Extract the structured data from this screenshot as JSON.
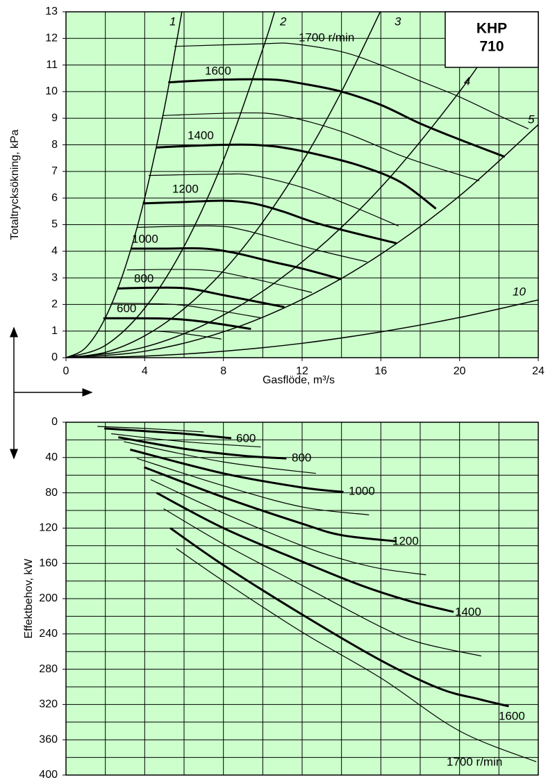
{
  "chart_data": [
    {
      "type": "line",
      "xlabel": "Gasflöde, m³/s",
      "ylabel": "Totaltrycksökning, kPa",
      "badge": [
        "KHP",
        "710"
      ],
      "xlim": [
        0,
        24
      ],
      "ylim": [
        0,
        13
      ],
      "xticks": [
        0,
        4,
        8,
        12,
        16,
        20,
        24
      ],
      "xgrid": [
        0,
        2,
        4,
        6,
        8,
        10,
        12,
        14,
        16,
        18,
        20,
        22,
        24
      ],
      "yticks": [
        0,
        1,
        2,
        3,
        4,
        5,
        6,
        7,
        8,
        9,
        10,
        11,
        12,
        13
      ],
      "grid": true,
      "background": "#ccffcc",
      "series": [
        {
          "color": "#000000",
          "width": 1.2,
          "x": [
            1.6,
            4.4,
            6,
            7.9
          ],
          "values": [
            1.0,
            1.0,
            0.9,
            0.7
          ]
        },
        {
          "name": "600",
          "color": "#000000",
          "width": 3,
          "x": [
            1.9,
            5,
            7,
            9.4
          ],
          "values": [
            1.48,
            1.47,
            1.35,
            1.08
          ]
        },
        {
          "color": "#000000",
          "width": 1.2,
          "x": [
            2.3,
            5.5,
            7.5,
            9.9
          ],
          "values": [
            2.05,
            2.0,
            1.8,
            1.5
          ]
        },
        {
          "name": "800",
          "color": "#000000",
          "width": 3,
          "x": [
            2.6,
            4.5,
            6.2,
            8,
            11.1
          ],
          "values": [
            2.6,
            2.63,
            2.6,
            2.35,
            1.9
          ]
        },
        {
          "color": "#000000",
          "width": 1.2,
          "x": [
            3.1,
            6.9,
            9,
            12.5
          ],
          "values": [
            3.3,
            3.3,
            3.05,
            2.45
          ]
        },
        {
          "name": "1000",
          "color": "#000000",
          "width": 3,
          "x": [
            3.3,
            5,
            7,
            8.5,
            10.5,
            12,
            14
          ],
          "values": [
            4.1,
            4.1,
            4.1,
            3.95,
            3.6,
            3.35,
            2.95
          ]
        },
        {
          "color": "#000000",
          "width": 1.2,
          "x": [
            3.6,
            7.5,
            9,
            11,
            13,
            15.3
          ],
          "values": [
            4.9,
            4.95,
            4.8,
            4.4,
            4.0,
            3.6
          ]
        },
        {
          "name": "1200",
          "color": "#000000",
          "width": 3,
          "x": [
            3.9,
            6,
            8,
            9.5,
            11,
            13,
            16.8
          ],
          "values": [
            5.8,
            5.85,
            5.9,
            5.8,
            5.5,
            5.0,
            4.3
          ]
        },
        {
          "color": "#000000",
          "width": 1.2,
          "x": [
            4.2,
            8,
            9.5,
            12,
            14.5,
            16.9
          ],
          "values": [
            6.85,
            6.9,
            6.85,
            6.4,
            5.7,
            4.95
          ]
        },
        {
          "name": "1400",
          "color": "#000000",
          "width": 3,
          "x": [
            4.6,
            6,
            8,
            9.5,
            11,
            13,
            15,
            17,
            18.8
          ],
          "values": [
            7.9,
            7.95,
            8.0,
            8.0,
            7.9,
            7.6,
            7.2,
            6.6,
            5.6
          ]
        },
        {
          "color": "#000000",
          "width": 1.2,
          "x": [
            4.9,
            9,
            11,
            14,
            17,
            19,
            21
          ],
          "values": [
            9.1,
            9.2,
            9.1,
            8.5,
            7.6,
            7.1,
            6.65
          ]
        },
        {
          "name": "1600",
          "color": "#000000",
          "width": 3,
          "x": [
            5.2,
            8,
            10.5,
            12,
            14,
            16,
            18,
            20,
            22.3
          ],
          "values": [
            10.35,
            10.45,
            10.45,
            10.3,
            10.0,
            9.5,
            8.8,
            8.2,
            7.55
          ]
        },
        {
          "name": "1700 r/min",
          "color": "#000000",
          "width": 1.2,
          "x": [
            5.5,
            10,
            11.5,
            14,
            16,
            18,
            20,
            22,
            23.5
          ],
          "values": [
            11.7,
            11.8,
            11.8,
            11.5,
            11.0,
            10.4,
            9.8,
            9.1,
            8.6
          ]
        }
      ],
      "system_curves": [
        {
          "name": "1",
          "color": "#000000",
          "x": [
            0,
            1,
            2,
            3,
            4,
            5,
            5.89
          ],
          "values": [
            0,
            0.375,
            1.5,
            3.375,
            6.0,
            9.375,
            13.0
          ]
        },
        {
          "name": "2",
          "color": "#000000",
          "x": [
            0,
            2,
            4,
            6,
            8,
            10,
            10.6
          ],
          "values": [
            0,
            0.46,
            1.86,
            4.18,
            7.42,
            11.6,
            13.0
          ]
        },
        {
          "name": "3",
          "color": "#000000",
          "x": [
            0,
            2,
            4,
            6,
            8,
            10,
            12,
            14,
            15.97
          ],
          "values": [
            0,
            0.2,
            0.82,
            1.84,
            3.26,
            5.1,
            7.34,
            10.0,
            13.0
          ]
        },
        {
          "name": "4",
          "color": "#000000",
          "x": [
            0,
            4,
            8,
            12,
            16,
            20,
            22.8
          ],
          "values": [
            0,
            0.4,
            1.6,
            3.6,
            6.4,
            10.0,
            13.0
          ]
        },
        {
          "name": "5",
          "color": "#000000",
          "x": [
            0,
            4,
            8,
            12,
            16,
            20,
            24
          ],
          "values": [
            0,
            0.24,
            0.97,
            2.19,
            3.89,
            6.08,
            8.76
          ]
        },
        {
          "name": "10",
          "color": "#000000",
          "x": [
            0,
            4,
            8,
            12,
            16,
            20,
            24
          ],
          "values": [
            0,
            0.06,
            0.24,
            0.54,
            0.97,
            1.51,
            2.17
          ]
        }
      ]
    },
    {
      "type": "line",
      "ylabel": "Effektbehov, kW",
      "xlim": [
        0,
        24
      ],
      "ylim": [
        0,
        400
      ],
      "y_inverted": true,
      "xgrid": [
        0,
        2,
        4,
        6,
        8,
        10,
        12,
        14,
        16,
        18,
        20,
        22,
        24
      ],
      "yticks": [
        0,
        40,
        80,
        120,
        160,
        200,
        240,
        280,
        320,
        360,
        400
      ],
      "ygrid": [
        0,
        20,
        40,
        60,
        80,
        100,
        120,
        140,
        160,
        180,
        200,
        220,
        240,
        260,
        280,
        300,
        320,
        340,
        360,
        380,
        400
      ],
      "grid": true,
      "background": "#ccffcc",
      "series": [
        {
          "color": "#000000",
          "width": 1.2,
          "x": [
            1.6,
            4,
            7
          ],
          "values": [
            4.7,
            7,
            11
          ]
        },
        {
          "name": "600",
          "color": "#000000",
          "width": 3,
          "x": [
            1.95,
            4,
            6,
            8.4
          ],
          "values": [
            7,
            10,
            13,
            18
          ]
        },
        {
          "color": "#000000",
          "width": 1.2,
          "x": [
            2.3,
            6,
            9.9
          ],
          "values": [
            13,
            22,
            28
          ]
        },
        {
          "name": "800",
          "color": "#000000",
          "width": 3,
          "x": [
            2.66,
            6,
            9,
            11.2
          ],
          "values": [
            17,
            30,
            38,
            41
          ]
        },
        {
          "color": "#000000",
          "width": 1.2,
          "x": [
            2.94,
            8,
            12.7
          ],
          "values": [
            22,
            45,
            58
          ]
        },
        {
          "name": "1000",
          "color": "#000000",
          "width": 3,
          "x": [
            3.26,
            8,
            12,
            14.1
          ],
          "values": [
            31,
            58,
            74,
            79
          ]
        },
        {
          "color": "#000000",
          "width": 1.2,
          "x": [
            3.6,
            8,
            12,
            15.4
          ],
          "values": [
            41,
            72,
            96,
            105
          ]
        },
        {
          "name": "1200",
          "color": "#000000",
          "width": 3,
          "x": [
            3.97,
            8,
            12,
            14,
            16.8
          ],
          "values": [
            51,
            85,
            115,
            128,
            135
          ]
        },
        {
          "color": "#000000",
          "width": 1.2,
          "x": [
            4.3,
            8,
            12,
            14,
            16,
            18.3
          ],
          "values": [
            65,
            103,
            140,
            155,
            166,
            173
          ]
        },
        {
          "name": "1400",
          "color": "#000000",
          "width": 3,
          "x": [
            4.6,
            8,
            12,
            15,
            17.5,
            19.7
          ],
          "values": [
            80,
            120,
            158,
            185,
            203,
            215
          ]
        },
        {
          "color": "#000000",
          "width": 1.2,
          "x": [
            4.96,
            8,
            12,
            16,
            18,
            21.1
          ],
          "values": [
            98,
            138,
            185,
            232,
            250,
            265
          ]
        },
        {
          "name": "1600",
          "color": "#000000",
          "width": 3,
          "x": [
            5.3,
            8,
            12,
            16,
            19,
            21,
            22.5
          ],
          "values": [
            120,
            162,
            218,
            270,
            302,
            314,
            322
          ]
        },
        {
          "name": "1700 r/min",
          "color": "#000000",
          "width": 1.2,
          "x": [
            5.6,
            8,
            12,
            16,
            20,
            23.9
          ],
          "values": [
            143,
            180,
            238,
            290,
            350,
            385
          ]
        }
      ]
    }
  ]
}
